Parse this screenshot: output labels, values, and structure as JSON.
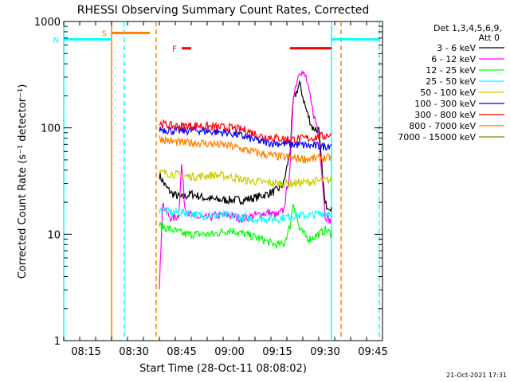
{
  "chart_data": {
    "type": "line",
    "title": "RHESSI Observing Summary Count Rates, Corrected",
    "xlabel": "Start Time (28-Oct-11 08:08:02)",
    "ylabel": "Corrected Count Rate (s⁻¹ detector⁻¹)",
    "y_scale": "log",
    "ylim": [
      1,
      1000
    ],
    "xlim": [
      "08:08",
      "09:48"
    ],
    "x_ticks": [
      "08:15",
      "08:30",
      "08:45",
      "09:00",
      "09:15",
      "09:30",
      "09:45"
    ],
    "y_ticks": [
      "1",
      "10",
      "100",
      "1000"
    ],
    "legend": {
      "header_line1": "Det 1,3,4,5,6,9,",
      "header_line2": "Att 0",
      "position": "right"
    },
    "footer_timestamp": "21-Oct-2021 17:31",
    "data_gap": {
      "from": "08:08",
      "to": "08:38"
    },
    "series": [
      {
        "name": "3 - 6 keV",
        "color": "#000000",
        "x": [
          "08:38",
          "08:40",
          "08:42",
          "08:45",
          "08:48",
          "08:52",
          "08:56",
          "09:00",
          "09:04",
          "09:08",
          "09:12",
          "09:15",
          "09:17",
          "09:19",
          "09:20",
          "09:22",
          "09:24",
          "09:26",
          "09:28",
          "09:30",
          "09:32"
        ],
        "y": [
          36,
          28,
          24,
          22,
          24,
          22,
          21,
          21,
          21,
          22,
          24,
          26,
          30,
          60,
          180,
          260,
          150,
          100,
          95,
          19,
          18
        ]
      },
      {
        "name": "6 - 12 keV",
        "color": "#ff00ff",
        "x": [
          "08:38",
          "08:39",
          "08:40",
          "08:42",
          "08:44",
          "08:45",
          "08:46",
          "08:48",
          "08:52",
          "08:56",
          "09:00",
          "09:04",
          "09:08",
          "09:12",
          "09:15",
          "09:17",
          "09:19",
          "09:20",
          "09:22",
          "09:24",
          "09:26",
          "09:28",
          "09:30",
          "09:32"
        ],
        "y": [
          3,
          20,
          16,
          14,
          15,
          45,
          18,
          15,
          14,
          15,
          15,
          14,
          15,
          16,
          15,
          17,
          40,
          200,
          350,
          300,
          150,
          90,
          15,
          13
        ]
      },
      {
        "name": "12 - 25 keV",
        "color": "#00ff00",
        "x": [
          "08:38",
          "08:42",
          "08:46",
          "08:50",
          "08:55",
          "09:00",
          "09:05",
          "09:10",
          "09:14",
          "09:17",
          "09:19",
          "09:20",
          "09:22",
          "09:25",
          "09:28",
          "09:30",
          "09:32"
        ],
        "y": [
          12,
          11,
          10,
          10,
          10,
          11,
          10,
          9,
          8,
          8,
          12,
          20,
          11,
          9,
          10,
          11,
          10
        ]
      },
      {
        "name": "25 - 50 keV",
        "color": "#00ffff",
        "x": [
          "08:38",
          "08:42",
          "08:46",
          "08:50",
          "08:55",
          "09:00",
          "09:05",
          "09:10",
          "09:15",
          "09:20",
          "09:25",
          "09:30",
          "09:32"
        ],
        "y": [
          17,
          16,
          16,
          15,
          15,
          15,
          14,
          14,
          14,
          15,
          15,
          16,
          16
        ]
      },
      {
        "name": "50 - 100 keV",
        "color": "#cccc00",
        "x": [
          "08:38",
          "08:42",
          "08:46",
          "08:50",
          "08:55",
          "09:00",
          "09:05",
          "09:10",
          "09:15",
          "09:20",
          "09:25",
          "09:30",
          "09:32"
        ],
        "y": [
          38,
          37,
          35,
          35,
          36,
          35,
          32,
          31,
          30,
          30,
          31,
          32,
          32
        ]
      },
      {
        "name": "100 - 300 keV",
        "color": "#0000ff",
        "x": [
          "08:38",
          "08:42",
          "08:46",
          "08:50",
          "08:55",
          "09:00",
          "09:05",
          "09:10",
          "09:15",
          "09:20",
          "09:25",
          "09:30",
          "09:32"
        ],
        "y": [
          98,
          94,
          94,
          95,
          92,
          90,
          82,
          74,
          72,
          70,
          68,
          67,
          70
        ]
      },
      {
        "name": "300 - 800 keV",
        "color": "#ff0000",
        "x": [
          "08:38",
          "08:42",
          "08:46",
          "08:50",
          "08:55",
          "09:00",
          "09:05",
          "09:10",
          "09:15",
          "09:20",
          "09:25",
          "09:30",
          "09:32"
        ],
        "y": [
          110,
          104,
          104,
          105,
          102,
          100,
          95,
          84,
          80,
          78,
          80,
          84,
          88
        ]
      },
      {
        "name": "800 - 7000 keV",
        "color": "#ff8000",
        "x": [
          "08:38",
          "08:42",
          "08:46",
          "08:50",
          "08:55",
          "09:00",
          "09:05",
          "09:10",
          "09:15",
          "09:20",
          "09:25",
          "09:30",
          "09:32"
        ],
        "y": [
          80,
          74,
          72,
          73,
          70,
          68,
          62,
          57,
          54,
          52,
          51,
          52,
          53
        ]
      },
      {
        "name": "7000 - 15000 keV",
        "color": "#808000",
        "x": [],
        "y": []
      }
    ],
    "flags": [
      {
        "label": "S",
        "color": "#ff8000",
        "from": "08:23",
        "to": "08:35",
        "level": 780
      },
      {
        "label": "N",
        "color": "#00ffff",
        "from": "08:08",
        "to": "08:23",
        "level": 680
      },
      {
        "label": "F",
        "color": "#ff0000",
        "from": "08:45",
        "to": "08:48",
        "level": 560
      },
      {
        "color": "#ff0000",
        "from": "09:19",
        "to": "09:32",
        "level": 560
      },
      {
        "color": "#00ffff",
        "from": "09:32",
        "to": "09:47",
        "level": 680
      }
    ],
    "vertical_markers": [
      {
        "x": "08:08",
        "color": "#00ffff",
        "style": "solid"
      },
      {
        "x": "08:23",
        "color": "#ff8000",
        "style": "solid"
      },
      {
        "x": "08:27",
        "color": "#00ffff",
        "style": "dashed"
      },
      {
        "x": "08:37",
        "color": "#ff8000",
        "style": "dashed"
      },
      {
        "x": "09:32",
        "color": "#00ffff",
        "style": "solid"
      },
      {
        "x": "09:35",
        "color": "#ff8000",
        "style": "dashed"
      },
      {
        "x": "09:47",
        "color": "#00ffff",
        "style": "dashed"
      }
    ]
  }
}
